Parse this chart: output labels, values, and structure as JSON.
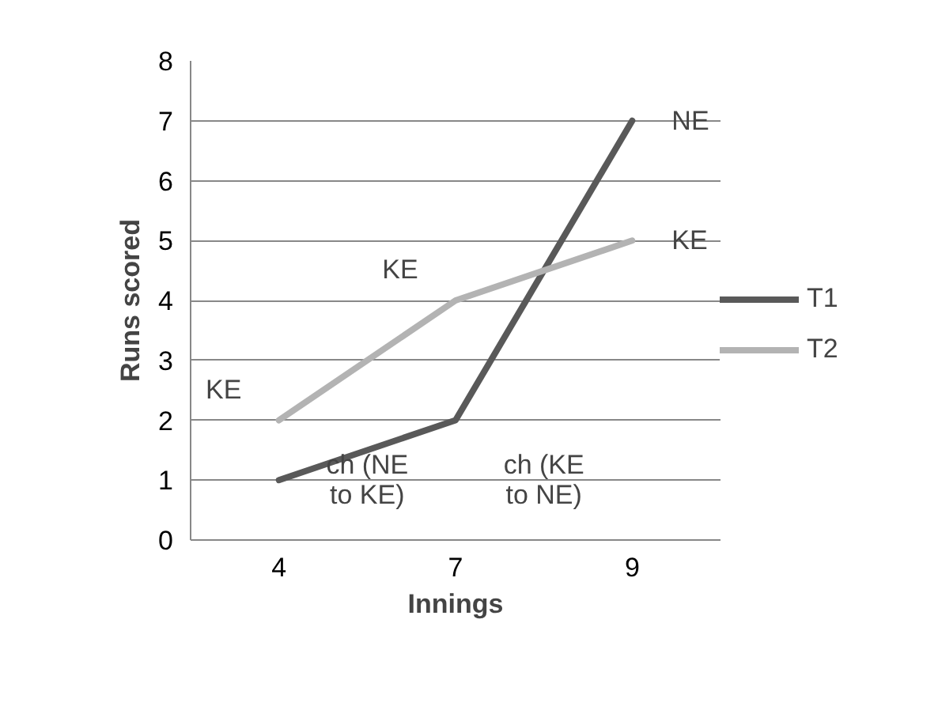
{
  "chart_data": {
    "type": "line",
    "xlabel": "Innings",
    "ylabel": "Runs scored",
    "categories": [
      "4",
      "7",
      "9"
    ],
    "series": [
      {
        "name": "T1",
        "color": "#595959",
        "values": [
          1,
          2,
          7
        ]
      },
      {
        "name": "T2",
        "color": "#b3b3b3",
        "values": [
          2,
          4,
          5
        ]
      }
    ],
    "ylim": [
      0,
      8
    ],
    "yticks": [
      0,
      1,
      2,
      3,
      4,
      5,
      6,
      7,
      8
    ],
    "grid": "y",
    "legend": "right",
    "marker": "none",
    "line_style": "solid",
    "annotations": [
      {
        "text": "KE",
        "x": "4",
        "y": 2
      },
      {
        "text": "KE",
        "x": "7",
        "y": 4
      },
      {
        "text": "KE",
        "x": "9",
        "y": 5
      },
      {
        "text": "NE",
        "x": "9",
        "y": 7
      },
      "ch (NE to KE)",
      "ch (KE to NE)"
    ]
  }
}
